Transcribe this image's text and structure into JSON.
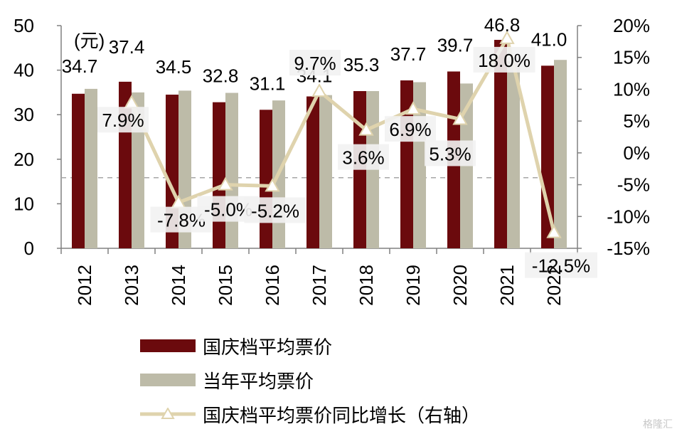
{
  "chart_data": {
    "type": "bar",
    "categories": [
      "2012",
      "2013",
      "2014",
      "2015",
      "2016",
      "2017",
      "2018",
      "2019",
      "2020",
      "2021",
      "2022"
    ],
    "series": [
      {
        "name": "国庆档平均票价",
        "type": "bar",
        "axis": "left",
        "values": [
          34.7,
          37.4,
          34.5,
          32.8,
          31.1,
          34.1,
          35.3,
          37.7,
          39.7,
          46.8,
          41.0
        ],
        "labels": [
          "34.7",
          "37.4",
          "34.5",
          "32.8",
          "31.1",
          "34.1",
          "35.3",
          "37.7",
          "39.7",
          "46.8",
          "41.0"
        ],
        "color": "#6b0a0d"
      },
      {
        "name": "当年平均票价",
        "type": "bar",
        "axis": "left",
        "values": [
          35.8,
          35.0,
          35.4,
          34.9,
          33.2,
          34.4,
          35.3,
          37.3,
          37.0,
          42.0,
          42.3
        ],
        "color": "#bdbba8"
      },
      {
        "name": "国庆档平均票价同比增长（右轴）",
        "type": "line",
        "axis": "right",
        "values": [
          null,
          7.9,
          -7.8,
          -5.0,
          -5.2,
          9.7,
          3.6,
          6.9,
          5.3,
          18.0,
          -12.5
        ],
        "labels": [
          "",
          "7.9%",
          "-7.8%",
          "-5.0%",
          "-5.2%",
          "9.7%",
          "3.6%",
          "6.9%",
          "5.3%",
          "18.0%",
          "-12.5%"
        ],
        "color": "#dfd3ad"
      }
    ],
    "ylabel": "(元)",
    "ylim": [
      0,
      50
    ],
    "yticks": [
      "0",
      "10",
      "20",
      "30",
      "40",
      "50"
    ],
    "y2lim": [
      -15,
      20
    ],
    "y2ticks": [
      "-15%",
      "-10%",
      "-5%",
      "0%",
      "5%",
      "10%",
      "15%",
      "20%"
    ],
    "reference_line": {
      "axis": "right",
      "value": -3.9,
      "style": "dashed"
    },
    "legend_position": "bottom"
  },
  "legend": {
    "items": [
      {
        "label": "国庆档平均票价",
        "color": "#6b0a0d",
        "kind": "bar"
      },
      {
        "label": "当年平均票价",
        "color": "#bdbba8",
        "kind": "bar"
      },
      {
        "label": "国庆档平均票价同比增长（右轴）",
        "color": "#dfd3ad",
        "kind": "line"
      }
    ]
  },
  "watermark": "格隆汇"
}
